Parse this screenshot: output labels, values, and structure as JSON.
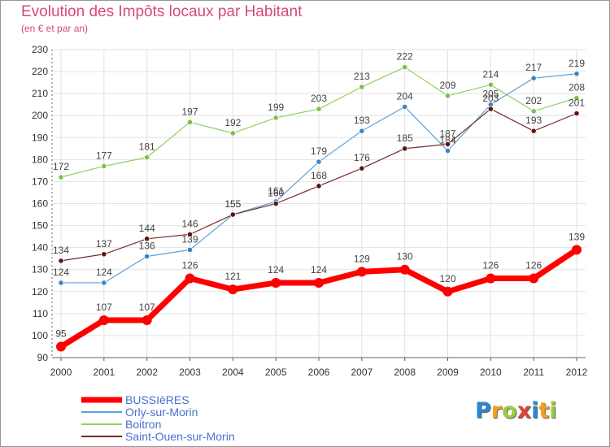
{
  "title": "Evolution des Impôts locaux par Habitant",
  "subtitle": "(en € et par an)",
  "logo": {
    "letters": [
      "P",
      "r",
      "o",
      "x",
      "i",
      "t",
      "i"
    ],
    "colors": [
      "#2e86d6",
      "#f0a020",
      "#9acb3c",
      "#e04040",
      "#2e86d6",
      "#f0a020",
      "#9acb3c"
    ]
  },
  "chart_data": {
    "type": "line",
    "title": "Evolution des Impôts locaux par Habitant",
    "subtitle": "(en € et par an)",
    "x": [
      "2000",
      "2001",
      "2002",
      "2003",
      "2004",
      "2005",
      "2006",
      "2007",
      "2008",
      "2009",
      "2010",
      "2011",
      "2012"
    ],
    "ylim": [
      90,
      230
    ],
    "yticks": [
      90,
      100,
      110,
      120,
      130,
      140,
      150,
      160,
      170,
      180,
      190,
      200,
      210,
      220,
      230
    ],
    "grid": true,
    "legend_position": "bottom-left",
    "series": [
      {
        "name": "Boitron",
        "color": "#8fd15f",
        "dot": "#7cc242",
        "width": 1.2,
        "label_colors": "#444444",
        "values": [
          172,
          177,
          181,
          197,
          192,
          199,
          203,
          213,
          222,
          209,
          214,
          202,
          208
        ]
      },
      {
        "name": "Orly-sur-Morin",
        "color": "#5f9fd6",
        "dot": "#3a84c9",
        "width": 1.2,
        "label_colors": "#444444",
        "values": [
          124,
          124,
          136,
          139,
          155,
          161,
          179,
          193,
          204,
          184,
          205,
          217,
          219
        ]
      },
      {
        "name": "Saint-Ouen-sur-Morin",
        "color": "#7a2a2a",
        "dot": "#5a1515",
        "width": 1.2,
        "label_colors": "#444444",
        "values": [
          134,
          137,
          144,
          146,
          155,
          160,
          168,
          176,
          185,
          187,
          203,
          193,
          201
        ]
      },
      {
        "name": "BUSSIèRES",
        "color": "#ff0000",
        "dot": "#ff0000",
        "width": 7,
        "label_colors": "#444444",
        "values": [
          95,
          107,
          107,
          126,
          121,
          124,
          124,
          129,
          130,
          120,
          126,
          126,
          139
        ]
      }
    ],
    "legend_order": [
      "BUSSIèRES",
      "Orly-sur-Morin",
      "Boitron",
      "Saint-Ouen-sur-Morin"
    ]
  }
}
